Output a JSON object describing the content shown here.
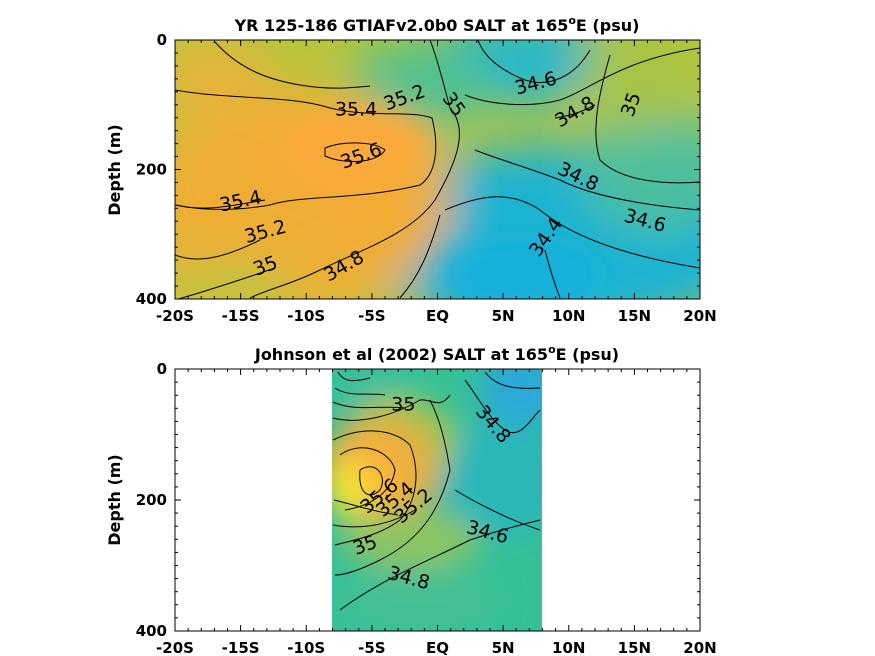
{
  "chart_data": [
    {
      "type": "heatmap",
      "title_main": "YR 125-186 GTIAFv2.0b0 SALT at 165",
      "title_sup": "o",
      "title_end": "E (psu)",
      "ylabel": "Depth (m)",
      "xlabel": "",
      "x_ticks": [
        "-20S",
        "-15S",
        "-10S",
        "-5S",
        "EQ",
        "5N",
        "10N",
        "15N",
        "20N"
      ],
      "x_tick_values": [
        -20,
        -15,
        -10,
        -5,
        0,
        5,
        10,
        15,
        20
      ],
      "y_ticks": [
        "0",
        "200",
        "400"
      ],
      "y_tick_values": [
        0,
        200,
        400
      ],
      "xlim": [
        -20,
        20
      ],
      "ylim": [
        0,
        400
      ],
      "y_reversed": true,
      "data_xlim": [
        -20,
        20
      ],
      "contour_labels": [
        {
          "text": "35.2",
          "x": -2.5,
          "y": 90,
          "rot": -20
        },
        {
          "text": "35.4",
          "x": -6.2,
          "y": 108,
          "rot": 0
        },
        {
          "text": "35",
          "x": 1.2,
          "y": 100,
          "rot": 55
        },
        {
          "text": "34.6",
          "x": 7.5,
          "y": 68,
          "rot": -15
        },
        {
          "text": "34.8",
          "x": 10.5,
          "y": 112,
          "rot": -30
        },
        {
          "text": "35",
          "x": 14.8,
          "y": 100,
          "rot": -70
        },
        {
          "text": "35.6",
          "x": -5.8,
          "y": 180,
          "rot": -20
        },
        {
          "text": "34.8",
          "x": 10.7,
          "y": 212,
          "rot": 25
        },
        {
          "text": "35.4",
          "x": -15.0,
          "y": 250,
          "rot": -12
        },
        {
          "text": "35.2",
          "x": -13.1,
          "y": 297,
          "rot": -15
        },
        {
          "text": "34.6",
          "x": 15.8,
          "y": 280,
          "rot": 15
        },
        {
          "text": "34.4",
          "x": 8.3,
          "y": 305,
          "rot": -55
        },
        {
          "text": "35",
          "x": -13.1,
          "y": 350,
          "rot": -20
        },
        {
          "text": "34.8",
          "x": -7.1,
          "y": 350,
          "rot": -30
        }
      ]
    },
    {
      "type": "heatmap",
      "title_main": "Johnson et al (2002) SALT at 165",
      "title_sup": "o",
      "title_end": "E (psu)",
      "ylabel": "Depth (m)",
      "xlabel": "",
      "x_ticks": [
        "-20S",
        "-15S",
        "-10S",
        "-5S",
        "EQ",
        "5N",
        "10N",
        "15N",
        "20N"
      ],
      "x_tick_values": [
        -20,
        -15,
        -10,
        -5,
        0,
        5,
        10,
        15,
        20
      ],
      "y_ticks": [
        "0",
        "200",
        "400"
      ],
      "y_tick_values": [
        0,
        200,
        400
      ],
      "xlim": [
        -20,
        20
      ],
      "ylim": [
        0,
        400
      ],
      "y_reversed": true,
      "data_xlim": [
        -8,
        8
      ],
      "contour_labels": [
        {
          "text": "35",
          "x": -2.6,
          "y": 55,
          "rot": 0
        },
        {
          "text": "34.8",
          "x": 4.2,
          "y": 85,
          "rot": 50
        },
        {
          "text": "35.6",
          "x": -4.4,
          "y": 195,
          "rot": -40
        },
        {
          "text": "35.4",
          "x": -3.2,
          "y": 200,
          "rot": -40
        },
        {
          "text": "35.2",
          "x": -1.8,
          "y": 210,
          "rot": -40
        },
        {
          "text": "34.6",
          "x": 3.8,
          "y": 250,
          "rot": 15
        },
        {
          "text": "35",
          "x": -5.5,
          "y": 270,
          "rot": -20
        },
        {
          "text": "34.8",
          "x": -2.2,
          "y": 320,
          "rot": 15
        }
      ]
    }
  ]
}
